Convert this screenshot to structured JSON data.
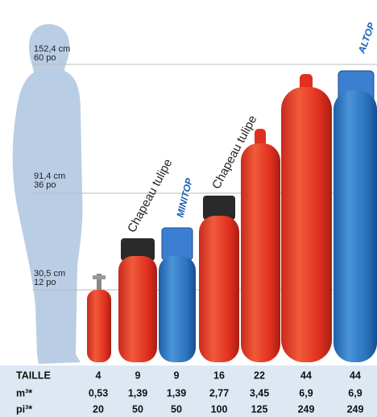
{
  "height_marks": [
    {
      "cm": "152,4 cm",
      "po": "60 po"
    },
    {
      "cm": "91,4 cm",
      "po": "36 po"
    },
    {
      "cm": "30,5 cm",
      "po": "12 po"
    }
  ],
  "annotations": {
    "tulipe_1": "Chapeau tulipe",
    "minitop": "MINITOP",
    "tulipe_2": "Chapeau tulipe",
    "altop": "ALTOP"
  },
  "table": {
    "rows": [
      [
        "TAILLE",
        "4",
        "9",
        "9",
        "16",
        "22",
        "44",
        "44"
      ],
      [
        "m³*",
        "0,53",
        "1,39",
        "1,39",
        "2,77",
        "3,45",
        "6,9",
        "6,9"
      ],
      [
        "pi³*",
        "20",
        "50",
        "50",
        "100",
        "125",
        "249",
        "249"
      ]
    ]
  }
}
